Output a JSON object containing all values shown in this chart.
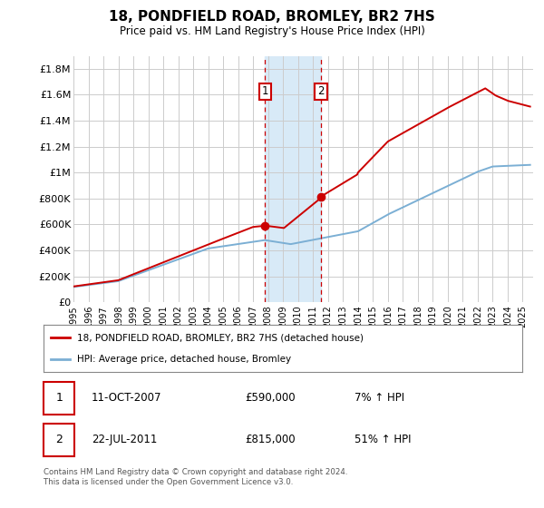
{
  "title": "18, PONDFIELD ROAD, BROMLEY, BR2 7HS",
  "subtitle": "Price paid vs. HM Land Registry's House Price Index (HPI)",
  "legend_line1": "18, PONDFIELD ROAD, BROMLEY, BR2 7HS (detached house)",
  "legend_line2": "HPI: Average price, detached house, Bromley",
  "transaction1_price": 590000,
  "transaction1_text": "11-OCT-2007",
  "transaction1_pct": "7% ↑ HPI",
  "transaction2_price": 815000,
  "transaction2_text": "22-JUL-2011",
  "transaction2_pct": "51% ↑ HPI",
  "footer": "Contains HM Land Registry data © Crown copyright and database right 2024.\nThis data is licensed under the Open Government Licence v3.0.",
  "red_color": "#cc0000",
  "blue_color": "#7bafd4",
  "shade_color": "#d8eaf7",
  "grid_color": "#cccccc",
  "ylim_min": 0,
  "ylim_max": 1900000,
  "yticks": [
    0,
    200000,
    400000,
    600000,
    800000,
    1000000,
    1200000,
    1400000,
    1600000,
    1800000
  ],
  "ytick_labels": [
    "£0",
    "£200K",
    "£400K",
    "£600K",
    "£800K",
    "£1M",
    "£1.2M",
    "£1.4M",
    "£1.6M",
    "£1.8M"
  ]
}
